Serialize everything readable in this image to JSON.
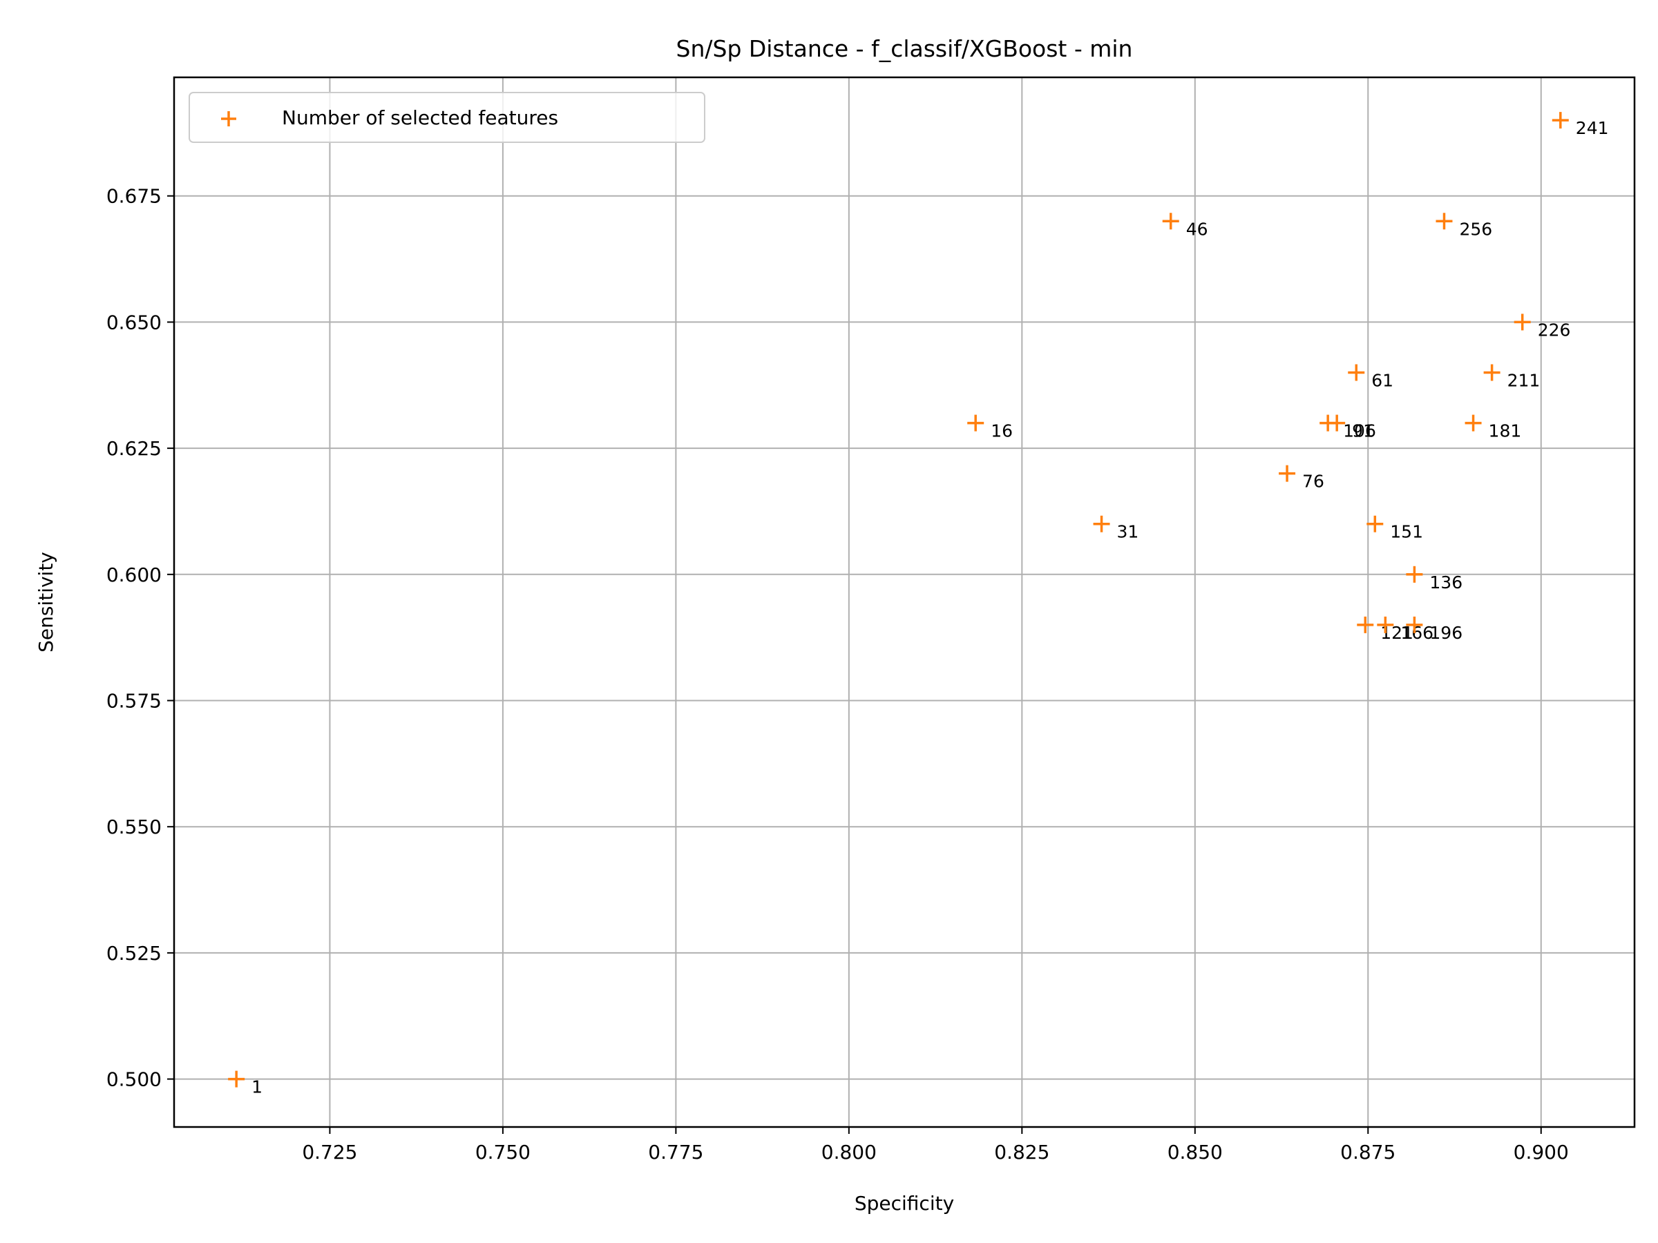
{
  "chart_data": {
    "type": "scatter",
    "title": "Sn/Sp Distance - f_classif/XGBoost - min",
    "xlabel": "Specificity",
    "ylabel": "Sensitivity",
    "xlim": [
      0.7025,
      0.9135
    ],
    "ylim": [
      0.4905,
      0.6985
    ],
    "x_ticks": [
      "0.725",
      "0.750",
      "0.775",
      "0.800",
      "0.825",
      "0.850",
      "0.875",
      "0.900"
    ],
    "y_ticks": [
      "0.500",
      "0.525",
      "0.550",
      "0.575",
      "0.600",
      "0.625",
      "0.650",
      "0.675"
    ],
    "grid": true,
    "legend_position": "top-left",
    "series": [
      {
        "name": "Number of selected features",
        "marker": "+",
        "color": "#ff7f0e",
        "points": [
          {
            "x": 0.7115,
            "y": 0.5,
            "label": "1"
          },
          {
            "x": 0.8183,
            "y": 0.63,
            "label": "16"
          },
          {
            "x": 0.8365,
            "y": 0.61,
            "label": "31"
          },
          {
            "x": 0.8465,
            "y": 0.67,
            "label": "46"
          },
          {
            "x": 0.8733,
            "y": 0.64,
            "label": "61"
          },
          {
            "x": 0.8633,
            "y": 0.62,
            "label": "76"
          },
          {
            "x": 0.8705,
            "y": 0.63,
            "label": "91"
          },
          {
            "x": 0.8692,
            "y": 0.63,
            "label": "106"
          },
          {
            "x": 0.8746,
            "y": 0.59,
            "label": "121"
          },
          {
            "x": 0.8817,
            "y": 0.6,
            "label": "136"
          },
          {
            "x": 0.876,
            "y": 0.61,
            "label": "151"
          },
          {
            "x": 0.8775,
            "y": 0.59,
            "label": "166"
          },
          {
            "x": 0.8902,
            "y": 0.63,
            "label": "181"
          },
          {
            "x": 0.8817,
            "y": 0.59,
            "label": "196"
          },
          {
            "x": 0.8929,
            "y": 0.64,
            "label": "211"
          },
          {
            "x": 0.8973,
            "y": 0.65,
            "label": "226"
          },
          {
            "x": 0.9028,
            "y": 0.69,
            "label": "241"
          },
          {
            "x": 0.886,
            "y": 0.67,
            "label": "256"
          }
        ]
      }
    ]
  }
}
